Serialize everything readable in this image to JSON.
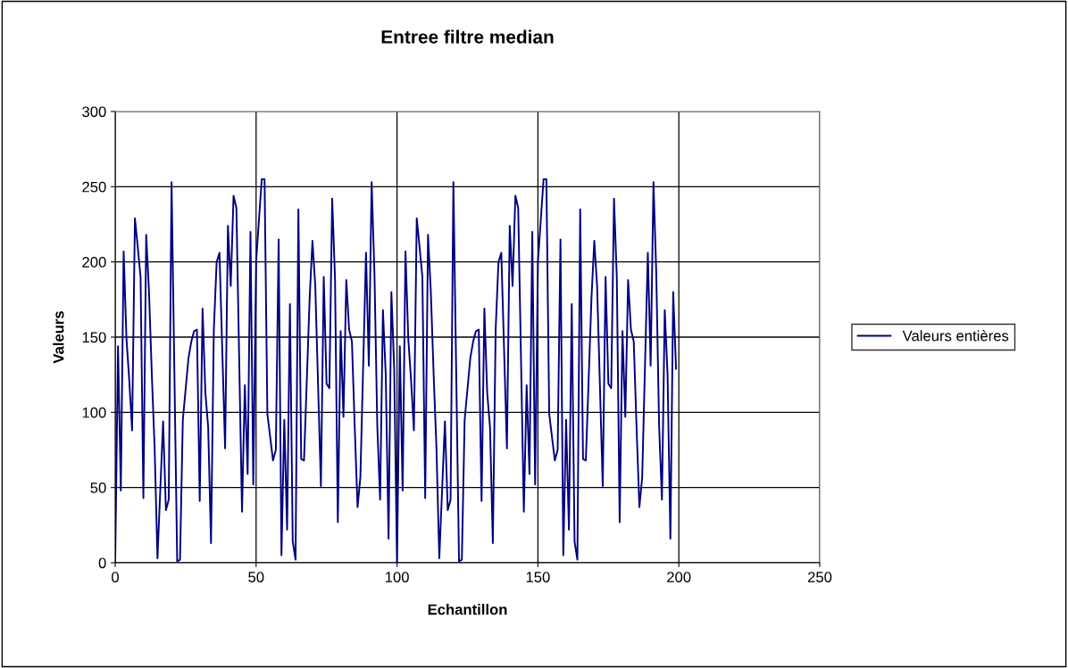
{
  "chart_data": {
    "type": "line",
    "title": "Entree filtre median",
    "xlabel": "Echantillon",
    "ylabel": "Valeurs",
    "xlim": [
      0,
      250
    ],
    "xticks": [
      0,
      50,
      100,
      150,
      200,
      250
    ],
    "ylim": [
      0,
      300
    ],
    "yticks": [
      0,
      50,
      100,
      150,
      200,
      250,
      300
    ],
    "grid": true,
    "legend": "right",
    "marker": "none",
    "line_style": "solid",
    "series": [
      {
        "name": "Valeurs entières",
        "color": "#000080",
        "x": [
          0,
          1,
          2,
          3,
          4,
          5,
          6,
          7,
          8,
          9,
          10,
          11,
          12,
          13,
          14,
          15,
          17,
          18,
          19,
          20,
          22,
          23,
          24,
          26,
          27,
          28,
          29,
          30,
          31,
          32,
          33,
          34,
          35,
          36,
          37,
          39,
          40,
          41,
          42,
          43,
          45,
          46,
          47,
          48,
          49,
          50,
          52,
          53,
          54,
          56,
          57,
          58,
          59,
          60,
          61,
          62,
          63,
          64,
          65,
          66,
          67,
          69,
          70,
          71,
          73,
          74,
          75,
          76,
          77,
          78,
          79,
          80,
          81,
          82,
          83,
          84,
          85,
          86,
          87,
          89,
          90,
          91,
          92,
          93,
          94,
          95,
          96,
          97,
          98,
          99,
          100,
          101,
          102,
          103,
          104,
          105,
          106,
          107,
          108,
          109,
          110,
          111,
          112,
          113,
          114,
          115,
          117,
          118,
          119,
          120,
          122,
          123,
          124,
          126,
          127,
          128,
          129,
          130,
          131,
          132,
          133,
          134,
          135,
          136,
          137,
          139,
          140,
          141,
          142,
          143,
          145,
          146,
          147,
          148,
          149,
          150,
          152,
          153,
          154,
          156,
          157,
          158,
          159,
          160,
          161,
          162,
          163,
          164,
          165,
          166,
          167,
          169,
          170,
          171,
          173,
          174,
          175,
          176,
          177,
          178,
          179,
          180,
          181,
          182,
          183,
          184,
          185,
          186,
          187,
          189,
          190,
          191,
          192,
          193,
          194,
          195,
          196,
          197,
          198,
          199
        ],
        "values": [
          0,
          144,
          48,
          207,
          149,
          121,
          88,
          229,
          210,
          190,
          43,
          218,
          180,
          125,
          76,
          3,
          94,
          35,
          42,
          253,
          1,
          2,
          95,
          136,
          147,
          154,
          155,
          41,
          169,
          113,
          90,
          13,
          155,
          200,
          206,
          76,
          224,
          184,
          244,
          236,
          34,
          118,
          59,
          220,
          52,
          200,
          255,
          255,
          99,
          68,
          75,
          215,
          5,
          95,
          22,
          172,
          14,
          2,
          235,
          69,
          68,
          176,
          214,
          184,
          51,
          190,
          119,
          116,
          242,
          189,
          27,
          154,
          97,
          188,
          155,
          147,
          90,
          37,
          57,
          206,
          131,
          253,
          192,
          91,
          42,
          168,
          125,
          16,
          180,
          129,
          0,
          144,
          48,
          207,
          149,
          121,
          88,
          229,
          210,
          190,
          43,
          218,
          180,
          125,
          76,
          3,
          94,
          35,
          42,
          253,
          1,
          2,
          95,
          136,
          147,
          154,
          155,
          41,
          169,
          113,
          90,
          13,
          155,
          200,
          206,
          76,
          224,
          184,
          244,
          236,
          34,
          118,
          59,
          220,
          52,
          200,
          255,
          255,
          99,
          68,
          75,
          215,
          5,
          95,
          22,
          172,
          14,
          2,
          235,
          69,
          68,
          176,
          214,
          184,
          51,
          190,
          119,
          116,
          242,
          189,
          27,
          154,
          97,
          188,
          155,
          147,
          90,
          37,
          57,
          206,
          131,
          253,
          192,
          91,
          42,
          168,
          125,
          16,
          180,
          129
        ]
      }
    ]
  }
}
